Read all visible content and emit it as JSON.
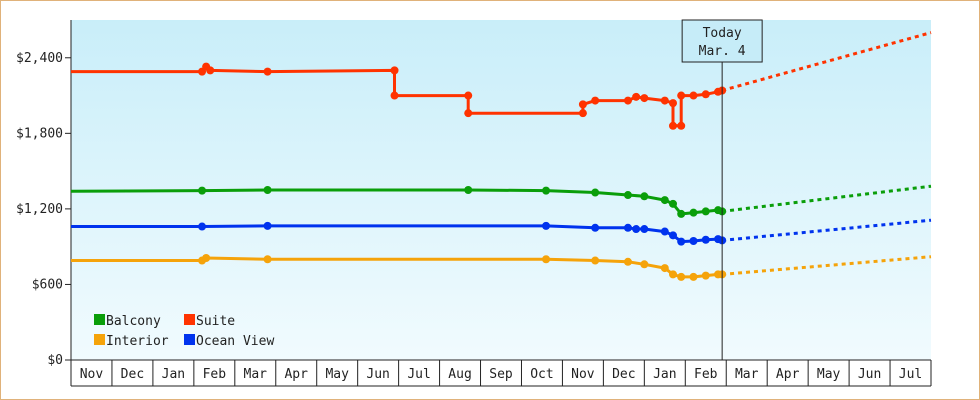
{
  "chart_data": {
    "type": "line",
    "title": "",
    "xlabel": "",
    "ylabel": "",
    "ylim": [
      0,
      2700
    ],
    "y_ticks": [
      0,
      600,
      1200,
      1800,
      2400
    ],
    "y_tick_labels": [
      "$0",
      "$600",
      "$1,200",
      "$1,800",
      "$2,400"
    ],
    "x_tick_labels": [
      "Nov",
      "Dec",
      "Jan",
      "Feb",
      "Mar",
      "Apr",
      "May",
      "Jun",
      "Jul",
      "Aug",
      "Sep",
      "Oct",
      "Nov",
      "Dec",
      "Jan",
      "Feb",
      "Mar",
      "Apr",
      "May",
      "Jun",
      "Jul"
    ],
    "x_unit": "month index (0 = first Nov)",
    "xlim": [
      0,
      21
    ],
    "today": {
      "line1": "Today",
      "line2": "Mar. 4",
      "x": 15.9
    },
    "grid": false,
    "legend_placement": "bottom-left",
    "series": [
      {
        "name": "Suite",
        "color": "#ff3300",
        "values": [
          [
            0.0,
            2290
          ],
          [
            3.2,
            2290
          ],
          [
            3.3,
            2330
          ],
          [
            3.4,
            2300
          ],
          [
            4.8,
            2290
          ],
          [
            7.9,
            2300
          ],
          [
            7.9,
            2100
          ],
          [
            9.7,
            2100
          ],
          [
            9.7,
            1960
          ],
          [
            12.5,
            1960
          ],
          [
            12.5,
            2030
          ],
          [
            12.8,
            2060
          ],
          [
            13.6,
            2060
          ],
          [
            13.8,
            2090
          ],
          [
            14.0,
            2080
          ],
          [
            14.5,
            2060
          ],
          [
            14.7,
            2040
          ],
          [
            14.7,
            1860
          ],
          [
            14.9,
            1860
          ],
          [
            14.9,
            2100
          ],
          [
            15.2,
            2100
          ],
          [
            15.5,
            2110
          ],
          [
            15.8,
            2130
          ],
          [
            15.9,
            2140
          ]
        ],
        "forecast": [
          [
            15.9,
            2140
          ],
          [
            21.0,
            2600
          ]
        ]
      },
      {
        "name": "Balcony",
        "color": "#0a9e0a",
        "values": [
          [
            0.0,
            1340
          ],
          [
            3.2,
            1345
          ],
          [
            4.8,
            1350
          ],
          [
            9.7,
            1350
          ],
          [
            11.6,
            1345
          ],
          [
            12.8,
            1330
          ],
          [
            13.6,
            1310
          ],
          [
            14.0,
            1300
          ],
          [
            14.5,
            1270
          ],
          [
            14.7,
            1240
          ],
          [
            14.9,
            1160
          ],
          [
            15.2,
            1170
          ],
          [
            15.5,
            1180
          ],
          [
            15.8,
            1190
          ],
          [
            15.9,
            1180
          ]
        ],
        "forecast": [
          [
            15.9,
            1180
          ],
          [
            21.0,
            1380
          ]
        ]
      },
      {
        "name": "Ocean View",
        "color": "#0033ee",
        "values": [
          [
            0.0,
            1060
          ],
          [
            3.2,
            1060
          ],
          [
            4.8,
            1065
          ],
          [
            11.6,
            1065
          ],
          [
            12.8,
            1050
          ],
          [
            13.6,
            1050
          ],
          [
            13.8,
            1040
          ],
          [
            14.0,
            1040
          ],
          [
            14.5,
            1020
          ],
          [
            14.7,
            990
          ],
          [
            14.9,
            940
          ],
          [
            15.2,
            945
          ],
          [
            15.5,
            955
          ],
          [
            15.8,
            960
          ],
          [
            15.9,
            950
          ]
        ],
        "forecast": [
          [
            15.9,
            950
          ],
          [
            21.0,
            1110
          ]
        ]
      },
      {
        "name": "Interior",
        "color": "#f5a30a",
        "values": [
          [
            0.0,
            790
          ],
          [
            3.2,
            790
          ],
          [
            3.3,
            810
          ],
          [
            4.8,
            800
          ],
          [
            11.6,
            800
          ],
          [
            12.8,
            790
          ],
          [
            13.6,
            780
          ],
          [
            14.0,
            760
          ],
          [
            14.5,
            730
          ],
          [
            14.7,
            680
          ],
          [
            14.9,
            660
          ],
          [
            15.2,
            660
          ],
          [
            15.5,
            670
          ],
          [
            15.8,
            680
          ],
          [
            15.9,
            680
          ]
        ],
        "forecast": [
          [
            15.9,
            680
          ],
          [
            21.0,
            820
          ]
        ]
      }
    ],
    "legend": [
      {
        "name": "Balcony",
        "color": "#0a9e0a"
      },
      {
        "name": "Suite",
        "color": "#ff3300"
      },
      {
        "name": "Interior",
        "color": "#f5a30a"
      },
      {
        "name": "Ocean View",
        "color": "#0033ee"
      }
    ]
  }
}
